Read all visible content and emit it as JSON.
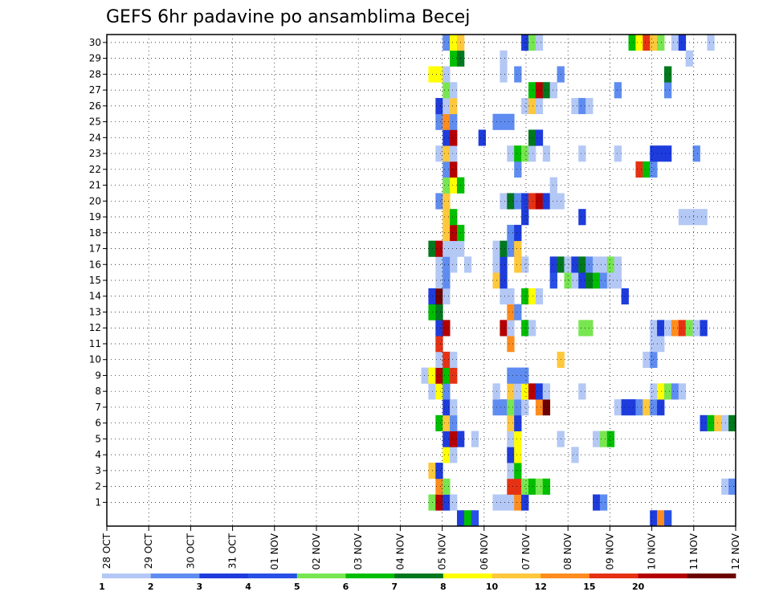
{
  "chart_data": {
    "type": "heatmap",
    "title": "GEFS 6hr padavine po ansamblima Becej",
    "x_tick_labels": [
      "28 OCT",
      "29 OCT",
      "30 OCT",
      "31 OCT",
      "01 NOV",
      "02 NOV",
      "03 NOV",
      "04 NOV",
      "05 NOV",
      "06 NOV",
      "07 NOV",
      "08 NOV",
      "09 NOV",
      "10 NOV",
      "11 NOV",
      "12 NOV"
    ],
    "y_tick_labels": [
      1,
      2,
      3,
      4,
      5,
      6,
      7,
      8,
      9,
      10,
      11,
      12,
      13,
      14,
      15,
      16,
      17,
      18,
      19,
      20,
      21,
      22,
      23,
      24,
      25,
      26,
      27,
      28,
      29,
      30
    ],
    "x_resolution_hours": 6,
    "grid": "dotted",
    "colorbar": {
      "labels": [
        "1",
        "2",
        "3",
        "4",
        "5",
        "6",
        "7",
        "8",
        "10",
        "12",
        "15",
        "20"
      ],
      "colors": [
        "#b4c8f5",
        "#5f8cf0",
        "#1e3cdc",
        "#2850e6",
        "#78e650",
        "#00be00",
        "#00781e",
        "#ffff00",
        "#ffc83c",
        "#ff8c1e",
        "#e63214",
        "#b40000",
        "#6e0000"
      ]
    },
    "cells": [
      {
        "m": 0,
        "c": [
          [
            49,
            2
          ],
          [
            50,
            5
          ],
          [
            51,
            3
          ],
          [
            76,
            2
          ],
          [
            77,
            9
          ],
          [
            78,
            3
          ]
        ]
      },
      {
        "m": 1,
        "c": [
          [
            45,
            4
          ],
          [
            46,
            11
          ],
          [
            47,
            2
          ],
          [
            48,
            0
          ],
          [
            54,
            0
          ],
          [
            55,
            0
          ],
          [
            56,
            0
          ],
          [
            57,
            9
          ],
          [
            58,
            2
          ],
          [
            68,
            2
          ],
          [
            69,
            1
          ]
        ]
      },
      {
        "m": 2,
        "c": [
          [
            46,
            9
          ],
          [
            47,
            4
          ],
          [
            56,
            10
          ],
          [
            57,
            10
          ],
          [
            58,
            4
          ],
          [
            59,
            5
          ],
          [
            60,
            4
          ],
          [
            61,
            5
          ],
          [
            86,
            0
          ],
          [
            87,
            1
          ]
        ]
      },
      {
        "m": 3,
        "c": [
          [
            45,
            8
          ],
          [
            46,
            2
          ],
          [
            56,
            0
          ],
          [
            57,
            5
          ]
        ]
      },
      {
        "m": 4,
        "c": [
          [
            47,
            7
          ],
          [
            48,
            0
          ],
          [
            56,
            2
          ],
          [
            57,
            7
          ],
          [
            65,
            0
          ]
        ]
      },
      {
        "m": 5,
        "c": [
          [
            47,
            2
          ],
          [
            48,
            11
          ],
          [
            49,
            2
          ],
          [
            51,
            0
          ],
          [
            56,
            0
          ],
          [
            57,
            7
          ],
          [
            63,
            0
          ],
          [
            68,
            0
          ],
          [
            69,
            4
          ],
          [
            70,
            5
          ]
        ]
      },
      {
        "m": 6,
        "c": [
          [
            46,
            5
          ],
          [
            47,
            8
          ],
          [
            48,
            1
          ],
          [
            56,
            8
          ],
          [
            57,
            2
          ],
          [
            83,
            2
          ],
          [
            84,
            5
          ],
          [
            85,
            8
          ],
          [
            86,
            0
          ],
          [
            87,
            6
          ]
        ]
      },
      {
        "m": 7,
        "c": [
          [
            47,
            2
          ],
          [
            48,
            0
          ],
          [
            54,
            1
          ],
          [
            55,
            1
          ],
          [
            56,
            4
          ],
          [
            57,
            1
          ],
          [
            58,
            0
          ],
          [
            60,
            9
          ],
          [
            61,
            12
          ],
          [
            71,
            0
          ],
          [
            72,
            2
          ],
          [
            73,
            2
          ],
          [
            74,
            1
          ],
          [
            75,
            8
          ],
          [
            76,
            1
          ],
          [
            77,
            2
          ]
        ]
      },
      {
        "m": 8,
        "c": [
          [
            45,
            0
          ],
          [
            46,
            7
          ],
          [
            47,
            1
          ],
          [
            54,
            0
          ],
          [
            56,
            8
          ],
          [
            57,
            0
          ],
          [
            58,
            7
          ],
          [
            59,
            11
          ],
          [
            60,
            2
          ],
          [
            61,
            0
          ],
          [
            66,
            0
          ],
          [
            76,
            0
          ],
          [
            77,
            7
          ],
          [
            78,
            4
          ],
          [
            79,
            1
          ],
          [
            80,
            0
          ]
        ]
      },
      {
        "m": 9,
        "c": [
          [
            44,
            0
          ],
          [
            45,
            7
          ],
          [
            46,
            11
          ],
          [
            47,
            5
          ],
          [
            48,
            10
          ],
          [
            56,
            1
          ],
          [
            57,
            1
          ],
          [
            58,
            1
          ]
        ]
      },
      {
        "m": 10,
        "c": [
          [
            46,
            0
          ],
          [
            47,
            10
          ],
          [
            48,
            0
          ],
          [
            63,
            8
          ],
          [
            75,
            0
          ],
          [
            76,
            1
          ]
        ]
      },
      {
        "m": 11,
        "c": [
          [
            46,
            10
          ],
          [
            56,
            9
          ],
          [
            76,
            0
          ],
          [
            77,
            0
          ]
        ]
      },
      {
        "m": 12,
        "c": [
          [
            46,
            2
          ],
          [
            47,
            11
          ],
          [
            55,
            11
          ],
          [
            56,
            0
          ],
          [
            58,
            5
          ],
          [
            59,
            0
          ],
          [
            66,
            4
          ],
          [
            67,
            4
          ],
          [
            76,
            0
          ],
          [
            77,
            2
          ],
          [
            78,
            0
          ],
          [
            79,
            9
          ],
          [
            80,
            10
          ],
          [
            81,
            4
          ],
          [
            82,
            0
          ],
          [
            83,
            2
          ]
        ]
      },
      {
        "m": 13,
        "c": [
          [
            45,
            5
          ],
          [
            46,
            6
          ],
          [
            56,
            9
          ],
          [
            57,
            1
          ]
        ]
      },
      {
        "m": 14,
        "c": [
          [
            45,
            2
          ],
          [
            46,
            12
          ],
          [
            47,
            0
          ],
          [
            55,
            0
          ],
          [
            56,
            0
          ],
          [
            58,
            5
          ],
          [
            59,
            7
          ],
          [
            60,
            0
          ],
          [
            72,
            2
          ]
        ]
      },
      {
        "m": 15,
        "c": [
          [
            46,
            0
          ],
          [
            47,
            1
          ],
          [
            54,
            8
          ],
          [
            55,
            2
          ],
          [
            62,
            3
          ],
          [
            64,
            4
          ],
          [
            65,
            0
          ],
          [
            66,
            2
          ],
          [
            67,
            6
          ],
          [
            68,
            5
          ],
          [
            69,
            1
          ],
          [
            70,
            0
          ],
          [
            71,
            0
          ]
        ]
      },
      {
        "m": 16,
        "c": [
          [
            46,
            0
          ],
          [
            47,
            1
          ],
          [
            48,
            0
          ],
          [
            50,
            0
          ],
          [
            54,
            0
          ],
          [
            55,
            2
          ],
          [
            57,
            8
          ],
          [
            58,
            0
          ],
          [
            62,
            2
          ],
          [
            63,
            6
          ],
          [
            64,
            0
          ],
          [
            65,
            2
          ],
          [
            66,
            6
          ],
          [
            67,
            1
          ],
          [
            68,
            0
          ],
          [
            69,
            0
          ],
          [
            70,
            4
          ],
          [
            71,
            0
          ]
        ]
      },
      {
        "m": 17,
        "c": [
          [
            45,
            6
          ],
          [
            46,
            11
          ],
          [
            47,
            0
          ],
          [
            48,
            0
          ],
          [
            49,
            0
          ],
          [
            54,
            0
          ],
          [
            55,
            6
          ],
          [
            56,
            1
          ],
          [
            57,
            8
          ]
        ]
      },
      {
        "m": 18,
        "c": [
          [
            47,
            8
          ],
          [
            48,
            11
          ],
          [
            49,
            5
          ],
          [
            56,
            1
          ],
          [
            57,
            2
          ]
        ]
      },
      {
        "m": 19,
        "c": [
          [
            47,
            8
          ],
          [
            48,
            5
          ],
          [
            58,
            2
          ],
          [
            66,
            2
          ],
          [
            80,
            0
          ],
          [
            81,
            0
          ],
          [
            82,
            0
          ],
          [
            83,
            0
          ]
        ]
      },
      {
        "m": 20,
        "c": [
          [
            46,
            1
          ],
          [
            47,
            8
          ],
          [
            55,
            0
          ],
          [
            56,
            6
          ],
          [
            57,
            1
          ],
          [
            58,
            2
          ],
          [
            59,
            10
          ],
          [
            60,
            11
          ],
          [
            61,
            2
          ],
          [
            62,
            0
          ],
          [
            63,
            0
          ]
        ]
      },
      {
        "m": 21,
        "c": [
          [
            47,
            4
          ],
          [
            48,
            7
          ],
          [
            49,
            5
          ],
          [
            62,
            0
          ]
        ]
      },
      {
        "m": 22,
        "c": [
          [
            47,
            1
          ],
          [
            48,
            11
          ],
          [
            57,
            1
          ],
          [
            74,
            10
          ],
          [
            75,
            5
          ],
          [
            76,
            1
          ]
        ]
      },
      {
        "m": 23,
        "c": [
          [
            46,
            0
          ],
          [
            47,
            8
          ],
          [
            48,
            0
          ],
          [
            56,
            0
          ],
          [
            57,
            5
          ],
          [
            58,
            4
          ],
          [
            59,
            0
          ],
          [
            61,
            0
          ],
          [
            66,
            0
          ],
          [
            71,
            0
          ],
          [
            76,
            2
          ],
          [
            77,
            2
          ],
          [
            78,
            2
          ],
          [
            82,
            1
          ]
        ]
      },
      {
        "m": 24,
        "c": [
          [
            47,
            2
          ],
          [
            48,
            11
          ],
          [
            52,
            2
          ],
          [
            59,
            6
          ],
          [
            60,
            2
          ]
        ]
      },
      {
        "m": 25,
        "c": [
          [
            46,
            1
          ],
          [
            47,
            9
          ],
          [
            48,
            1
          ],
          [
            54,
            1
          ],
          [
            55,
            1
          ],
          [
            56,
            1
          ]
        ]
      },
      {
        "m": 26,
        "c": [
          [
            46,
            2
          ],
          [
            47,
            0
          ],
          [
            48,
            8
          ],
          [
            58,
            0
          ],
          [
            59,
            8
          ],
          [
            60,
            0
          ],
          [
            65,
            0
          ],
          [
            66,
            1
          ],
          [
            67,
            0
          ]
        ]
      },
      {
        "m": 27,
        "c": [
          [
            47,
            4
          ],
          [
            48,
            0
          ],
          [
            59,
            5
          ],
          [
            60,
            11
          ],
          [
            61,
            6
          ],
          [
            62,
            0
          ],
          [
            71,
            1
          ],
          [
            78,
            1
          ]
        ]
      },
      {
        "m": 28,
        "c": [
          [
            45,
            7
          ],
          [
            46,
            7
          ],
          [
            47,
            0
          ],
          [
            55,
            0
          ],
          [
            57,
            1
          ],
          [
            63,
            1
          ],
          [
            78,
            6
          ]
        ]
      },
      {
        "m": 29,
        "c": [
          [
            48,
            5
          ],
          [
            49,
            6
          ],
          [
            55,
            0
          ],
          [
            81,
            0
          ]
        ]
      },
      {
        "m": 30,
        "c": [
          [
            47,
            1
          ],
          [
            48,
            7
          ],
          [
            49,
            8
          ],
          [
            58,
            2
          ],
          [
            59,
            4
          ],
          [
            60,
            0
          ],
          [
            73,
            5
          ],
          [
            74,
            7
          ],
          [
            75,
            10
          ],
          [
            76,
            8
          ],
          [
            77,
            4
          ],
          [
            79,
            0
          ],
          [
            80,
            2
          ],
          [
            84,
            0
          ]
        ]
      }
    ]
  }
}
